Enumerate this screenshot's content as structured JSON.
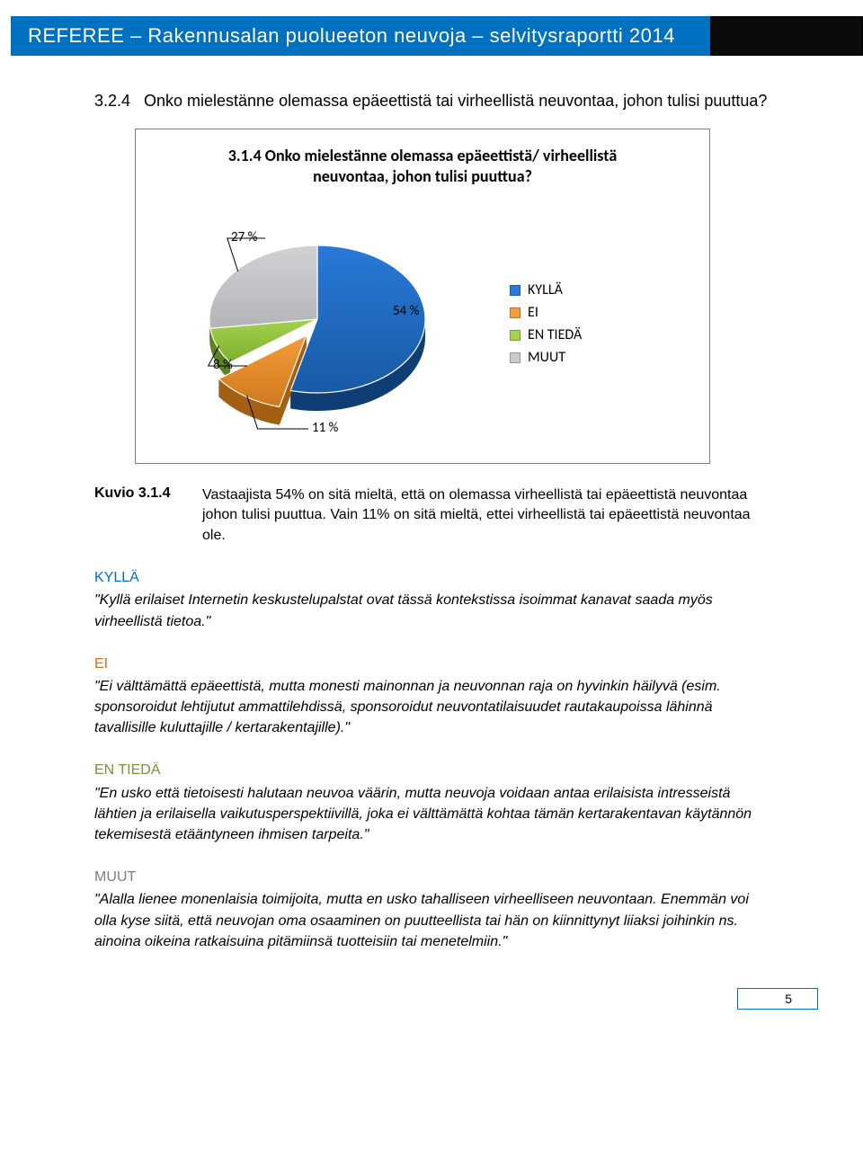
{
  "header": {
    "title": "REFEREE – Rakennusalan puolueeton neuvoja – selvitysraportti 2014"
  },
  "page": {
    "number": "5"
  },
  "section": {
    "num": "3.2.4",
    "title": "Onko mielestänne olemassa epäeettistä tai virheellistä neuvontaa, johon tulisi puuttua?"
  },
  "chart": {
    "type": "pie",
    "title_l1": "3.1.4 Onko mielestänne olemassa epäeettistä/ virheellistä",
    "title_l2": "neuvontaa, johon tulisi puuttua?",
    "slices": [
      {
        "name": "KYLLÄ",
        "value": 54,
        "label": "54 %",
        "color_top": "#2979d8",
        "color_bottom": "#185aa5",
        "side": "#0f3e74"
      },
      {
        "name": "EI",
        "value": 11,
        "label": "11 %",
        "color_top": "#f59b3a",
        "color_bottom": "#cf7a1e",
        "side": "#a35f12"
      },
      {
        "name": "EN TIEDÄ",
        "value": 8,
        "label": "8 %",
        "color_top": "#a4d24f",
        "color_bottom": "#7fae2f",
        "side": "#5e8320"
      },
      {
        "name": "MUUT",
        "value": 27,
        "label": "27 %",
        "color_top": "#d0d2d4",
        "color_bottom": "#b2b4b7",
        "side": "#8e9093"
      }
    ],
    "legend_swatch_colors": [
      "#2979d8",
      "#f59b3a",
      "#a4d24f",
      "#c8cacd"
    ],
    "background_color": "#ffffff",
    "title_fontsize": 18,
    "label_fontsize": 15
  },
  "kuvio": {
    "label": "Kuvio 3.1.4",
    "text": "Vastaajista 54% on sitä mieltä, että on olemassa virheellistä tai epäeettistä neuvontaa johon tulisi puuttua. Vain 11% on sitä mieltä, ettei virheellistä tai epäeettistä neuvontaa ole."
  },
  "cats": {
    "kylla": {
      "title": "KYLLÄ",
      "color": "#0070c0",
      "body": "\"Kyllä erilaiset Internetin keskustelupalstat ovat tässä kontekstissa isoimmat kanavat saada myös virheellistä tietoa.\""
    },
    "ei": {
      "title": "EI",
      "color": "#e46c0a",
      "body": "\"Ei välttämättä epäeettistä, mutta monesti mainonnan ja neuvonnan raja on hyvinkin häilyvä (esim. sponsoroidut lehtijutut ammattilehdissä, sponsoroidut neuvontatilaisuudet rautakaupoissa lähinnä tavallisille kuluttajille / kertarakentajille).\""
    },
    "entieda": {
      "title": "EN TIEDÄ",
      "color": "#76923c",
      "body": "\"En usko että tietoisesti halutaan neuvoa väärin, mutta neuvoja voidaan antaa erilaisista intresseistä lähtien ja erilaisella vaikutusperspektiivillä, joka ei välttämättä kohtaa tämän kertarakentavan käytännön tekemisestä etääntyneen ihmisen tarpeita.\""
    },
    "muut": {
      "title": "MUUT",
      "color": "#808080",
      "body": "\"Alalla lienee monenlaisia toimijoita, mutta en usko tahalliseen virheelliseen neuvontaan. Enemmän voi olla kyse siitä, että neuvojan oma osaaminen on puutteellista tai hän on kiinnittynyt liiaksi joihinkin ns. ainoina oikeina ratkaisuina pitämiinsä tuotteisiin tai menetelmiin.\""
    }
  }
}
